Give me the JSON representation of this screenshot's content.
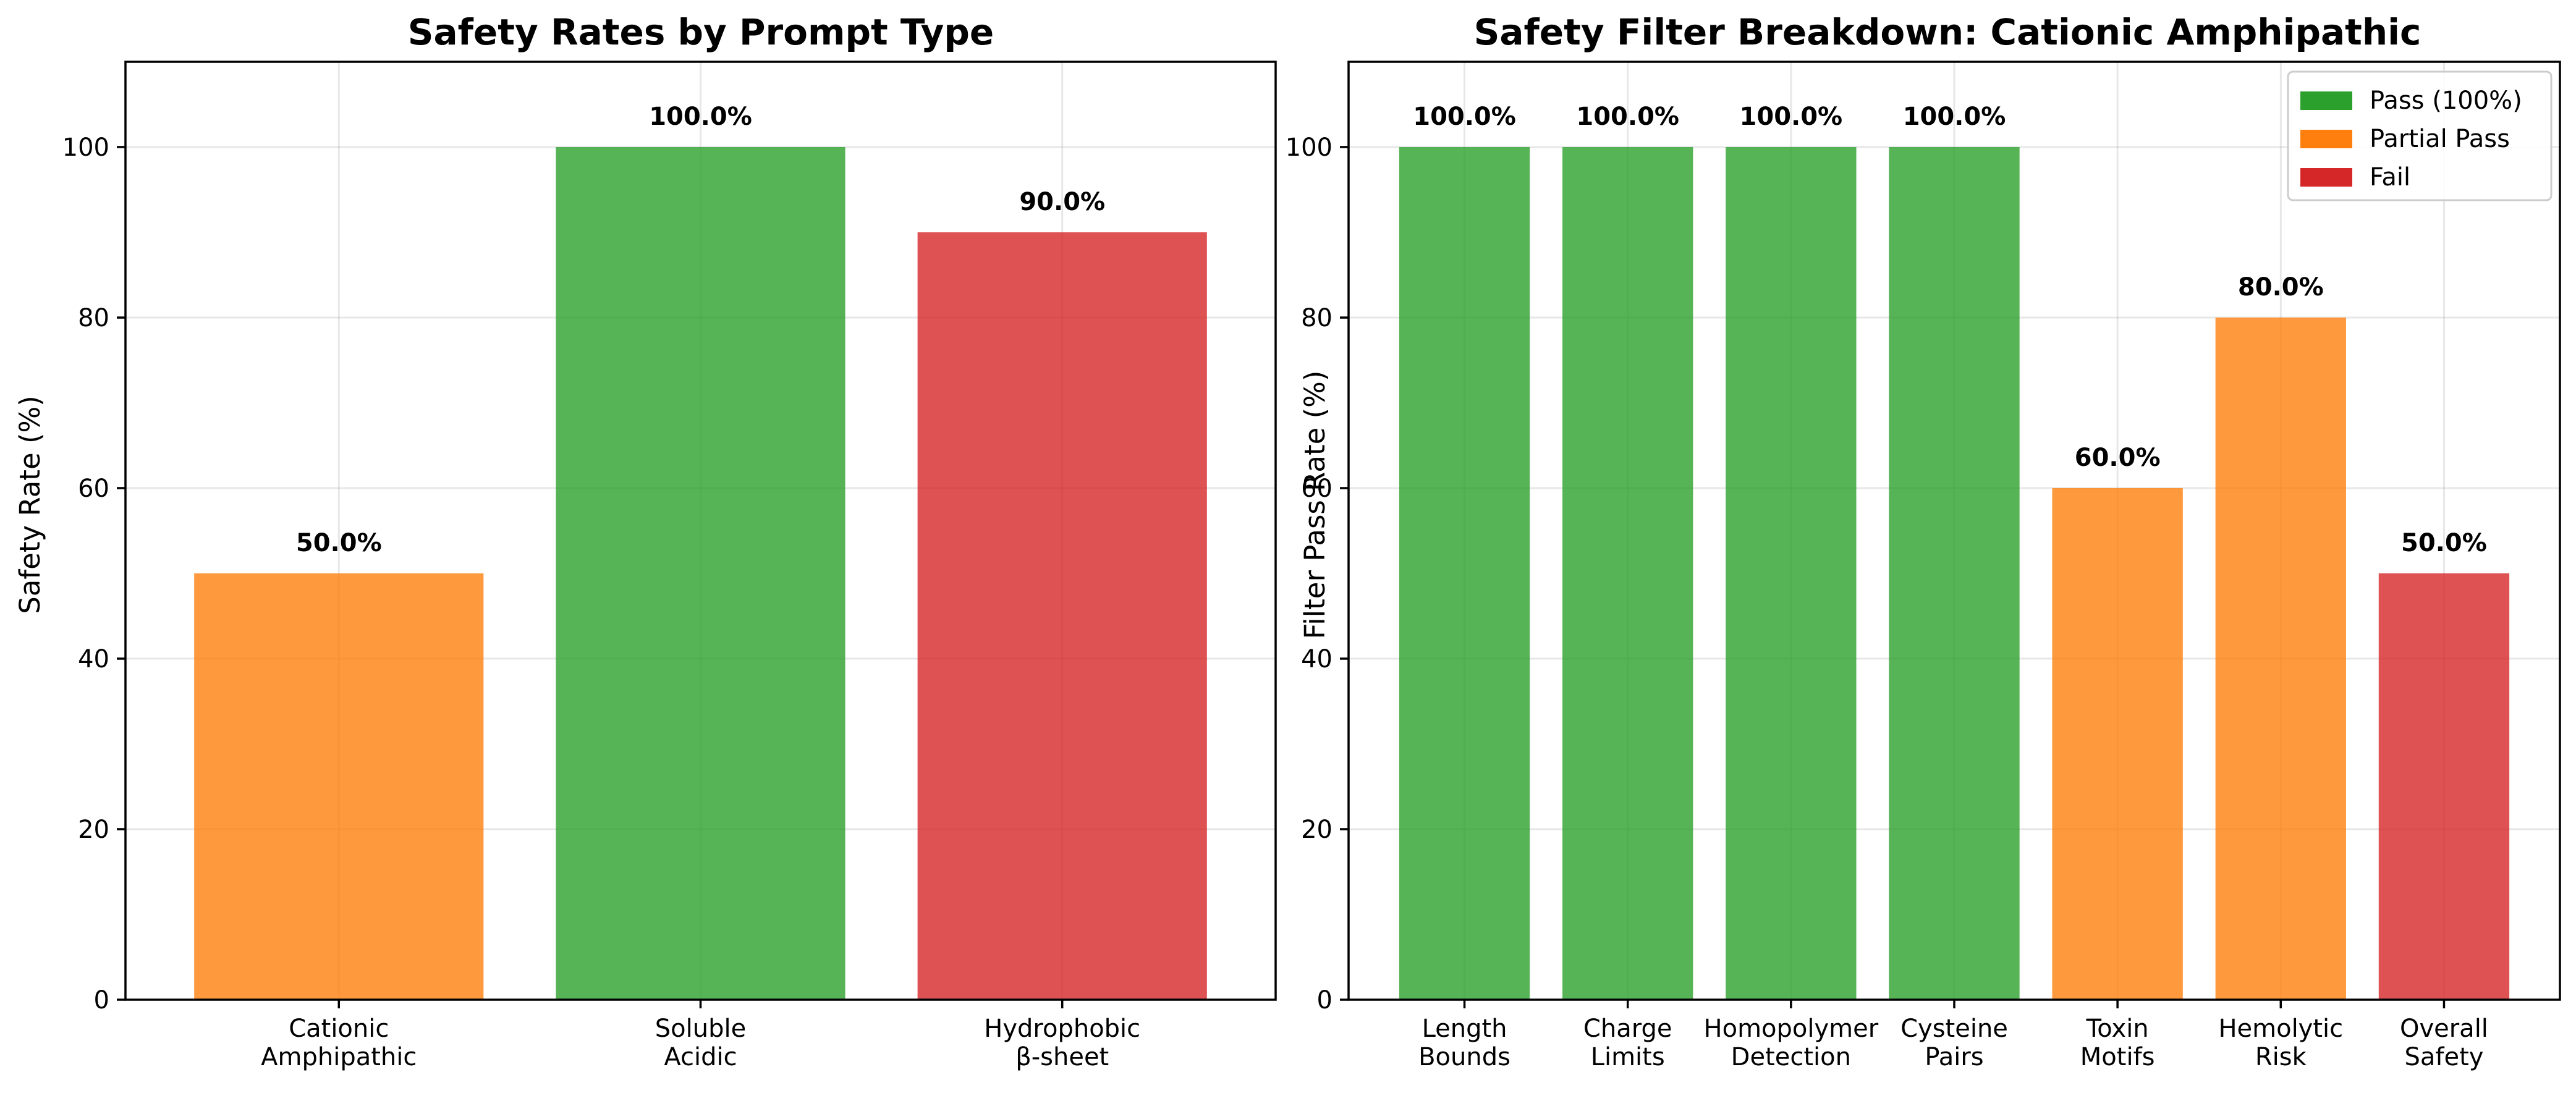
{
  "colors": {
    "pass": "#2ca02c",
    "partial": "#ff7f0e",
    "fail": "#d62728"
  },
  "chart_data": [
    {
      "type": "bar",
      "title": "Safety Rates by Prompt Type",
      "xlabel": "",
      "ylabel": "Safety Rate (%)",
      "ylim": [
        0,
        110
      ],
      "yticks": [
        0,
        20,
        40,
        60,
        80,
        100
      ],
      "grid": true,
      "categories": [
        [
          "Cationic",
          "Amphipathic"
        ],
        [
          "Soluble",
          "Acidic"
        ],
        [
          "Hydrophobic",
          "β-sheet"
        ]
      ],
      "values": [
        50.0,
        100.0,
        90.0
      ],
      "value_labels": [
        "50.0%",
        "100.0%",
        "90.0%"
      ],
      "bar_colors": [
        "#ff7f0e",
        "#2ca02c",
        "#d62728"
      ]
    },
    {
      "type": "bar",
      "title": "Safety Filter Breakdown: Cationic Amphipathic",
      "xlabel": "",
      "ylabel": "Filter Pass Rate (%)",
      "ylim": [
        0,
        110
      ],
      "yticks": [
        0,
        20,
        40,
        60,
        80,
        100
      ],
      "grid": true,
      "categories": [
        [
          "Length",
          "Bounds"
        ],
        [
          "Charge",
          "Limits"
        ],
        [
          "Homopolymer",
          "Detection"
        ],
        [
          "Cysteine",
          "Pairs"
        ],
        [
          "Toxin",
          "Motifs"
        ],
        [
          "Hemolytic",
          "Risk"
        ],
        [
          "Overall",
          "Safety"
        ]
      ],
      "values": [
        100.0,
        100.0,
        100.0,
        100.0,
        60.0,
        80.0,
        50.0
      ],
      "value_labels": [
        "100.0%",
        "100.0%",
        "100.0%",
        "100.0%",
        "60.0%",
        "80.0%",
        "50.0%"
      ],
      "bar_colors": [
        "#2ca02c",
        "#2ca02c",
        "#2ca02c",
        "#2ca02c",
        "#ff7f0e",
        "#ff7f0e",
        "#d62728"
      ],
      "legend": {
        "position": "upper right",
        "entries": [
          {
            "label": "Pass (100%)",
            "color": "#2ca02c"
          },
          {
            "label": "Partial Pass",
            "color": "#ff7f0e"
          },
          {
            "label": "Fail",
            "color": "#d62728"
          }
        ]
      }
    }
  ]
}
